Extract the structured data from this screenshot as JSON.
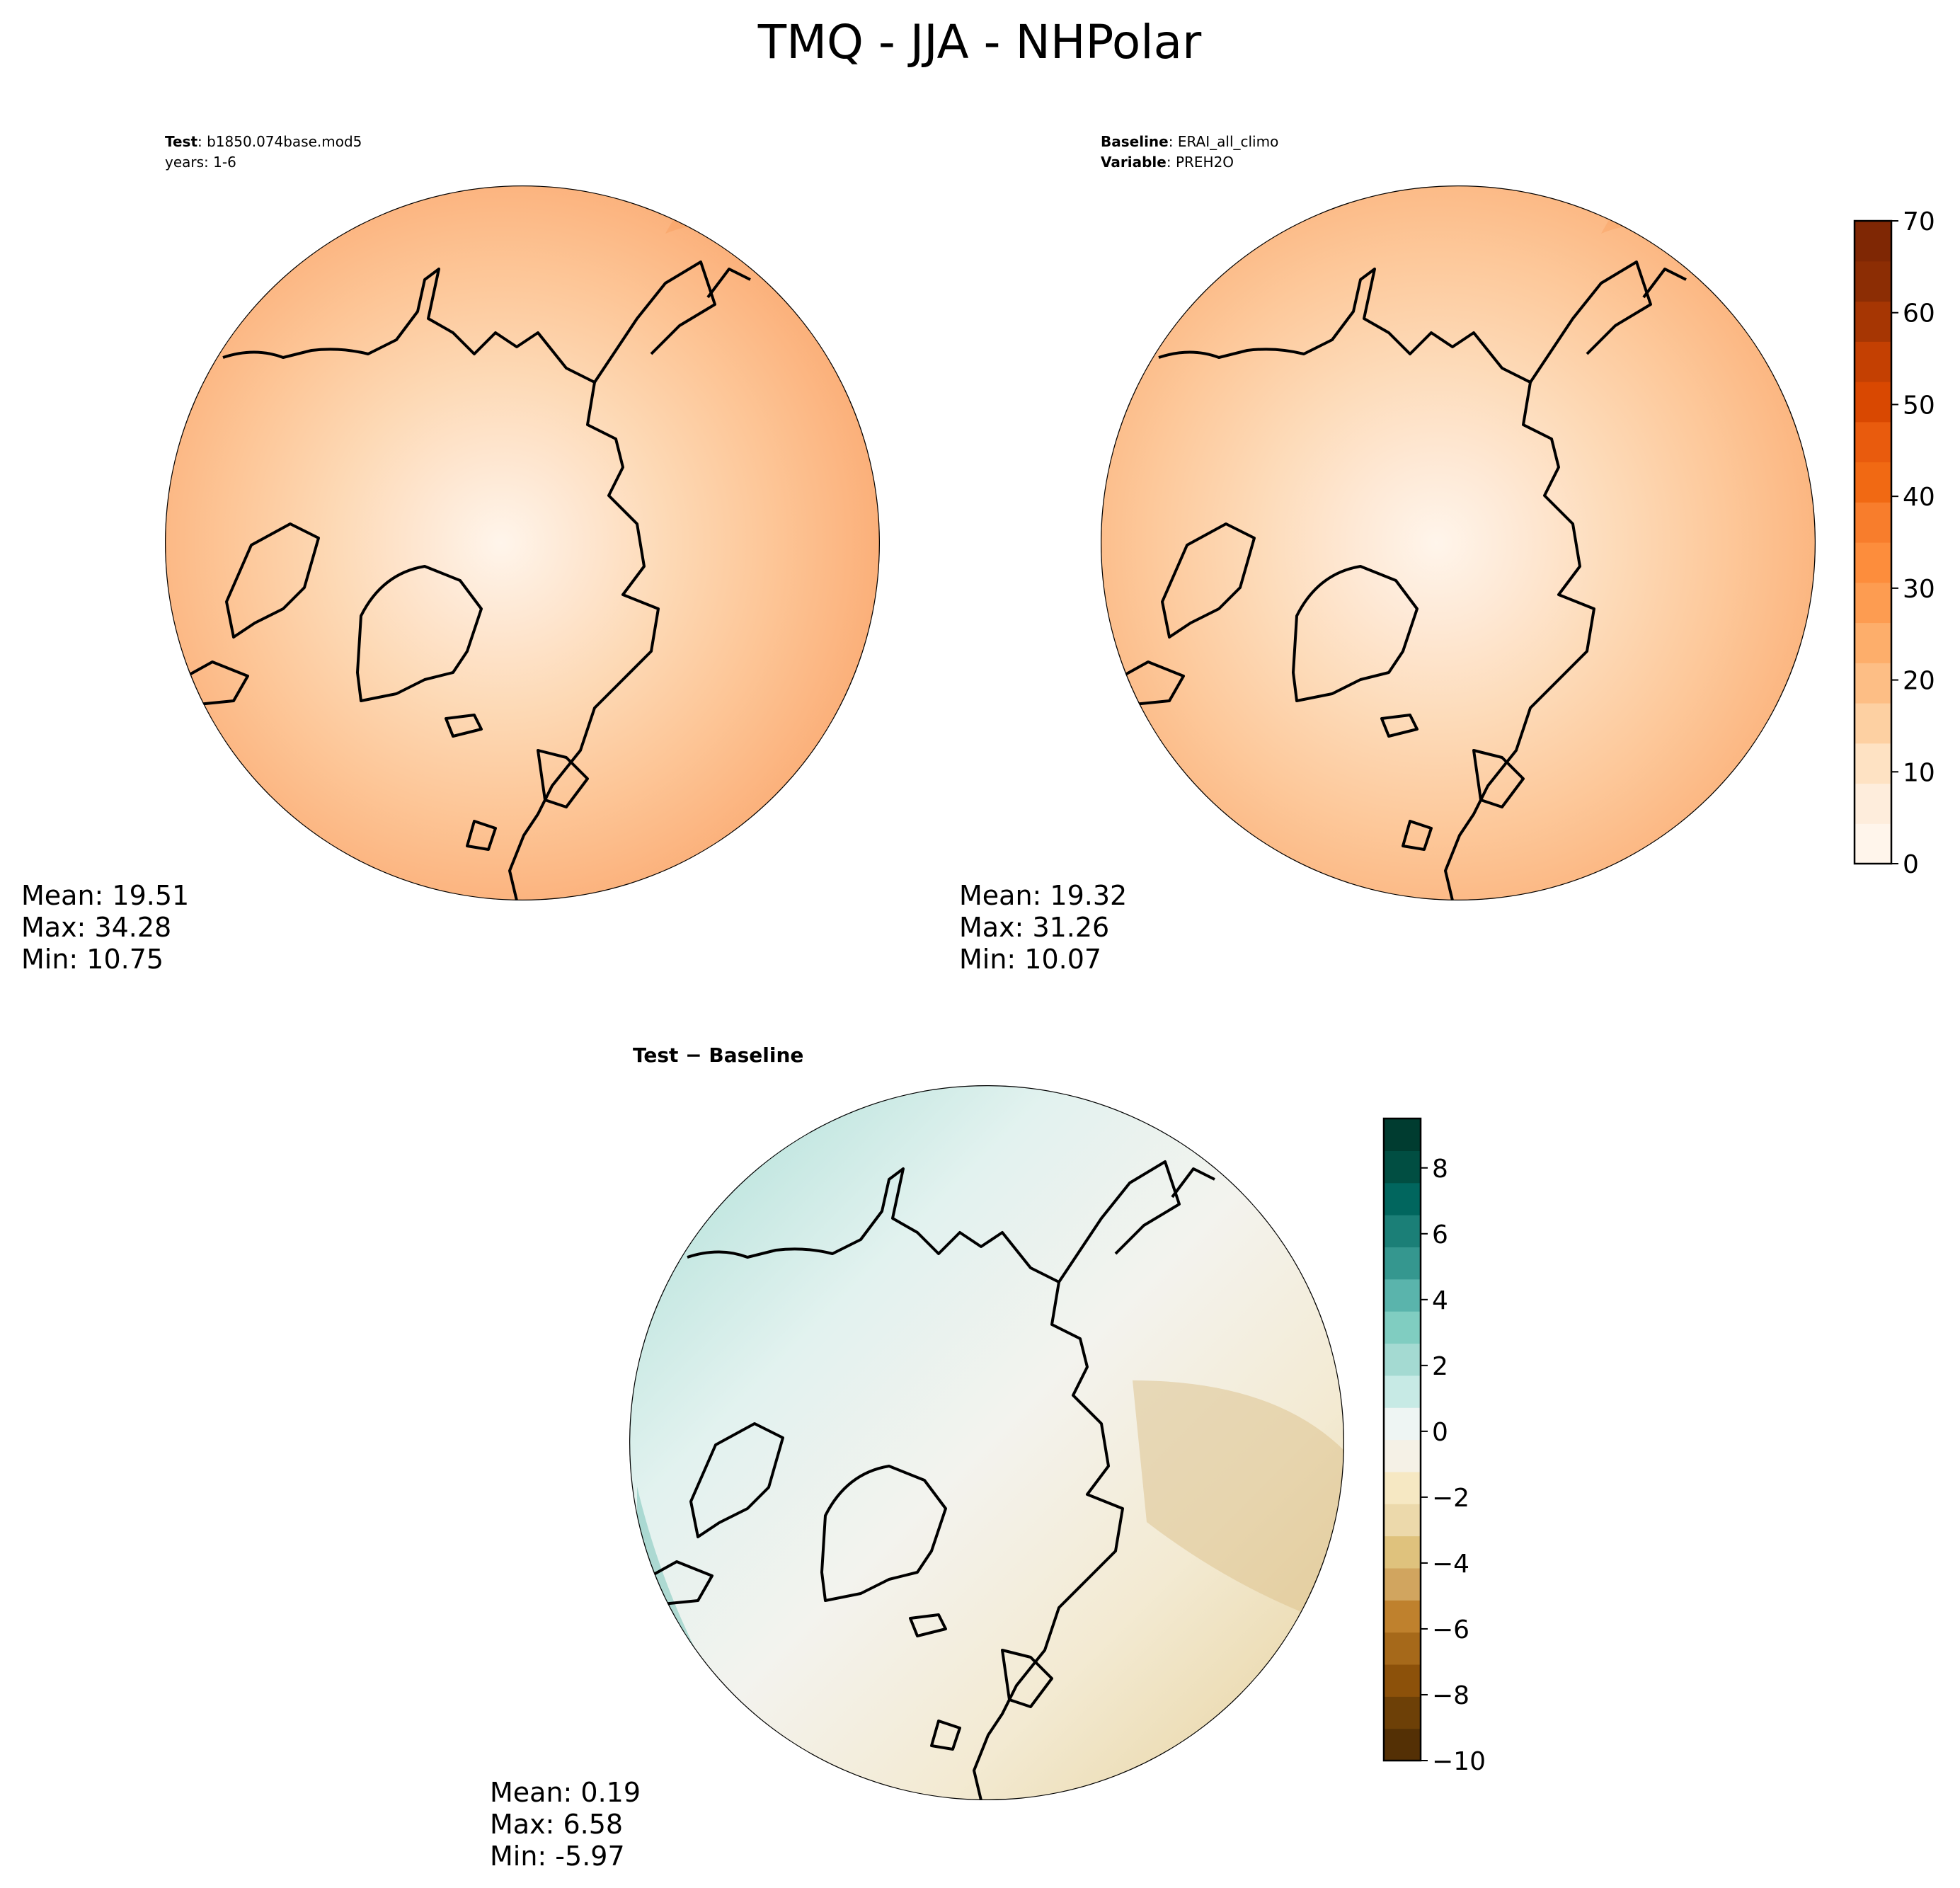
{
  "title": "TMQ - JJA - NHPolar",
  "panels": [
    {
      "id": "test",
      "meta_line1_key": "Test",
      "meta_line1_value": ": b1850.074base.mod5",
      "meta_line2": "years: 1-6",
      "stats": {
        "mean": "Mean: 19.51",
        "max": "Max: 34.28",
        "min": "Min: 10.75"
      }
    },
    {
      "id": "baseline",
      "meta_line1_key": "Baseline",
      "meta_line1_value": ": ERAI_all_climo",
      "meta_line2_key": "Variable",
      "meta_line2_value": ": PREH2O",
      "stats": {
        "mean": "Mean: 19.32",
        "max": "Max: 31.26",
        "min": "Min: 10.07"
      }
    },
    {
      "id": "difference",
      "label": "Test − Baseline",
      "stats": {
        "mean": "Mean:  0.19",
        "max": "Max:  6.58",
        "min": "Min: -5.97"
      }
    }
  ],
  "chart_data": [
    {
      "type": "heatmap",
      "projection": "north polar stereographic",
      "field": "test",
      "colormap": "Oranges",
      "levels": [
        0,
        5,
        10,
        15,
        20,
        25,
        30,
        35,
        40,
        45,
        50,
        55,
        60,
        65,
        70
      ],
      "summary": {
        "mean": 19.51,
        "max": 34.28,
        "min": 10.75
      }
    },
    {
      "type": "heatmap",
      "projection": "north polar stereographic",
      "field": "baseline",
      "colormap": "Oranges",
      "levels": [
        0,
        5,
        10,
        15,
        20,
        25,
        30,
        35,
        40,
        45,
        50,
        55,
        60,
        65,
        70
      ],
      "summary": {
        "mean": 19.32,
        "max": 31.26,
        "min": 10.07
      }
    },
    {
      "type": "heatmap",
      "projection": "north polar stereographic",
      "field": "difference",
      "colormap": "BrBG",
      "levels": [
        -10,
        -9,
        -8,
        -7,
        -6,
        -5,
        -4,
        -3,
        -2,
        -1,
        0,
        1,
        2,
        3,
        4,
        5,
        6,
        7,
        8,
        9,
        9.5
      ],
      "summary": {
        "mean": 0.19,
        "max": 6.58,
        "min": -5.97
      }
    }
  ],
  "colorbars": {
    "main": {
      "ticks": [
        "0",
        "10",
        "20",
        "30",
        "40",
        "50",
        "60",
        "70"
      ],
      "colors": [
        "#fff5eb",
        "#feeddc",
        "#fee2c3",
        "#fdd0a2",
        "#fdbe85",
        "#fdae6b",
        "#fd9c51",
        "#fd8d3c",
        "#f87d2c",
        "#f16913",
        "#e95b0d",
        "#d94801",
        "#c44002",
        "#a63603",
        "#8c2d04",
        "#7f2704"
      ]
    },
    "diff": {
      "ticks": [
        "8",
        "6",
        "4",
        "2",
        "0",
        "−2",
        "−4",
        "−6",
        "−8",
        "−10"
      ],
      "colors": [
        "#543005",
        "#6d4007",
        "#8c510a",
        "#a6691a",
        "#bf812d",
        "#d1a55f",
        "#dfc27d",
        "#ecd9ab",
        "#f6e8c3",
        "#f5f1e6",
        "#eef5f3",
        "#c7eae5",
        "#a4dad2",
        "#80cdc1",
        "#5ab4ac",
        "#35978f",
        "#1b7f77",
        "#01665e",
        "#014e42",
        "#003c30"
      ]
    }
  }
}
